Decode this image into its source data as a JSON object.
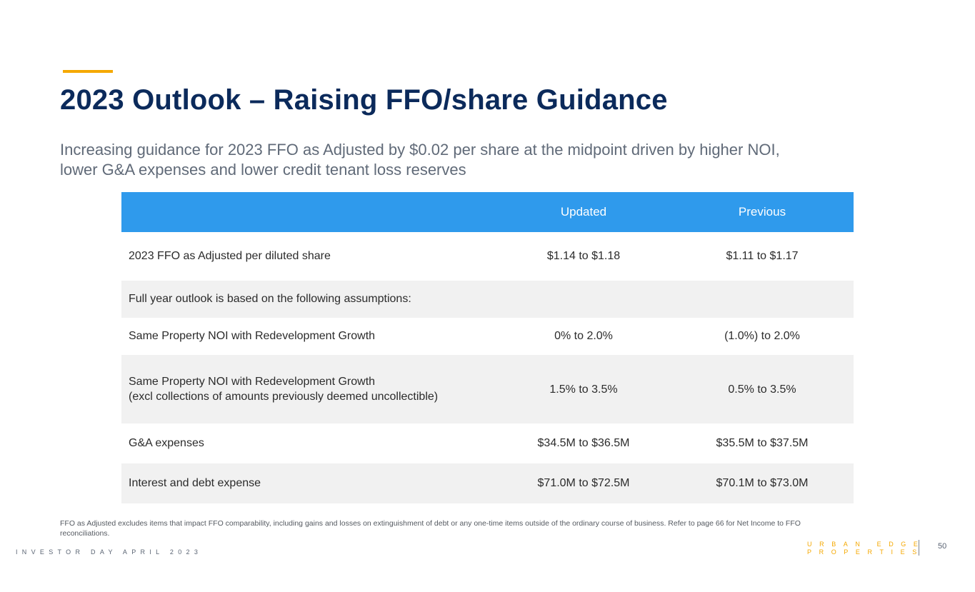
{
  "slide": {
    "title": "2023 Outlook – Raising FFO/share Guidance",
    "subtitle_lines": [
      "Increasing guidance for 2023 FFO as Adjusted by $0.02 per share at the midpoint driven by higher NOI,",
      "lower G&A expenses and lower credit tenant loss reserves"
    ],
    "accent_color": "#F5A800",
    "title_color": "#0B2A5B",
    "header_color": "#2F9AEC"
  },
  "table": {
    "headers": [
      "",
      "Updated",
      "Previous"
    ],
    "rows": [
      {
        "label": [
          "2023 FFO as Adjusted per diluted share"
        ],
        "updated": "$1.14 to $1.18",
        "previous": "$1.11 to $1.17"
      },
      {
        "label": [
          "Full year outlook is based on the following assumptions:"
        ],
        "updated": "",
        "previous": ""
      },
      {
        "label": [
          "Same Property NOI with Redevelopment Growth"
        ],
        "updated": "0% to 2.0%",
        "previous": "(1.0%) to 2.0%"
      },
      {
        "label": [
          "Same Property NOI with Redevelopment Growth",
          "(excl collections of amounts previously deemed uncollectible)"
        ],
        "updated": "1.5% to 3.5%",
        "previous": "0.5% to 3.5%"
      },
      {
        "label": [
          "G&A expenses"
        ],
        "updated": "$34.5M to $36.5M",
        "previous": "$35.5M to $37.5M"
      },
      {
        "label": [
          "Interest and debt expense"
        ],
        "updated": "$71.0M to $72.5M",
        "previous": "$70.1M to $73.0M"
      }
    ]
  },
  "footnote": "FFO as Adjusted excludes items that impact FFO comparability, including gains and losses on extinguishment of debt or any one-time items outside of the ordinary course of business. Refer to page 66 for Net Income to FFO reconciliations.",
  "footer": {
    "event": "INVESTOR DAY APRIL 2023",
    "brand_line1": "URBAN EDGE",
    "brand_line2": "PROPERTIES",
    "page_number": "50"
  }
}
